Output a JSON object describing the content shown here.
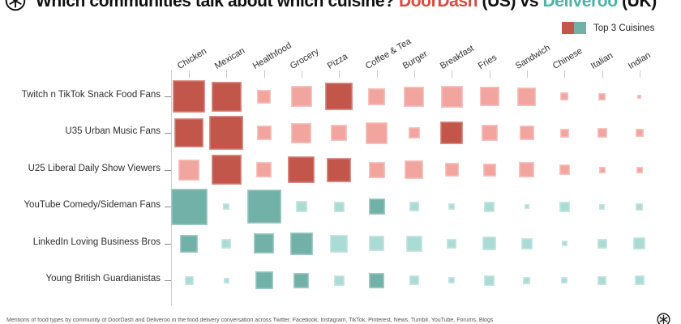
{
  "header": {
    "title_parts": [
      {
        "text": "Which communities talk about which cuisine? ",
        "color": "#111111"
      },
      {
        "text": "DoorDash",
        "color": "#d84b3e"
      },
      {
        "text": " (US) vs ",
        "color": "#111111"
      },
      {
        "text": "Deliveroo",
        "color": "#4db3a5"
      },
      {
        "text": " (UK)",
        "color": "#111111"
      }
    ],
    "legend": {
      "label": "Top 3 Cuisines",
      "swatch_us_color": "#c2564b",
      "swatch_uk_color": "#72b1a8"
    },
    "logo": "circled-asterisk-logo"
  },
  "footer": {
    "note": "Mentions of food types by community of DoorDash and Deliveroo in the food delivery conversation across Twitter, Facebook, Instagram, TikTok, Pinterest, News, Tumblr, YouTube, Forums, Blogs"
  },
  "chart_data": {
    "type": "heatmap",
    "subtype": "size-encoded matrix (square area = share of cuisine mentions; dark square = one of that community's top 3 cuisines)",
    "title": "Which communities talk about which cuisine? DoorDash (US) vs Deliveroo (UK)",
    "legend_label": "Top 3 Cuisines",
    "legend_position": "top-right",
    "grid": false,
    "columns": [
      "Chicken",
      "Mexican",
      "Healthfood",
      "Grocery",
      "Pizza",
      "Coffee & Tea",
      "Burger",
      "Breakfast",
      "Fries",
      "Sandwich",
      "Chinese",
      "Italian",
      "Indian"
    ],
    "palettes": {
      "red": {
        "base": "#f2a49e",
        "top3": "#c2564b",
        "brand": "DoorDash (US)"
      },
      "teal": {
        "base": "#abdbd5",
        "top3": "#72b1a8",
        "brand": "Deliveroo (UK)"
      }
    },
    "rows": [
      {
        "label": "Twitch n TikTok Snack Food Fans",
        "group": "DoorDash (US)",
        "palette": "red",
        "sizes": [
          40,
          37,
          17,
          26,
          34,
          21,
          25,
          27,
          24,
          23,
          10,
          9,
          5
        ],
        "top3_columns": [
          0,
          1,
          4
        ],
        "top3_names": [
          "Chicken",
          "Mexican",
          "Pizza"
        ]
      },
      {
        "label": "U35 Urban Music Fans",
        "group": "DoorDash (US)",
        "palette": "red",
        "sizes": [
          36,
          42,
          18,
          25,
          20,
          27,
          14,
          28,
          20,
          18,
          11,
          12,
          10
        ],
        "top3_columns": [
          0,
          1,
          7
        ],
        "top3_names": [
          "Chicken",
          "Mexican",
          "Breakfast"
        ]
      },
      {
        "label": "U25 Liberal Daily Show Viewers",
        "group": "DoorDash (US)",
        "palette": "red",
        "sizes": [
          26,
          37,
          19,
          33,
          30,
          20,
          23,
          17,
          16,
          19,
          13,
          8,
          8
        ],
        "top3_columns": [
          1,
          3,
          4
        ],
        "top3_names": [
          "Mexican",
          "Grocery",
          "Pizza"
        ]
      },
      {
        "label": "YouTube Comedy/Sideman Fans",
        "group": "Deliveroo (UK)",
        "palette": "teal",
        "sizes": [
          45,
          8,
          42,
          14,
          13,
          20,
          12,
          8,
          13,
          6,
          13,
          7,
          9
        ],
        "top3_columns": [
          0,
          2,
          5
        ],
        "top3_names": [
          "Chicken",
          "Healthfood",
          "Coffee & Tea"
        ]
      },
      {
        "label": "LinkedIn Loving Business Bros",
        "group": "Deliveroo (UK)",
        "palette": "teal",
        "sizes": [
          22,
          12,
          25,
          28,
          22,
          19,
          20,
          12,
          17,
          14,
          7,
          12,
          15
        ],
        "top3_columns": [
          0,
          2,
          3
        ],
        "top3_names": [
          "Chicken",
          "Healthfood",
          "Grocery"
        ]
      },
      {
        "label": "Young British Guardianistas",
        "group": "Deliveroo (UK)",
        "palette": "teal",
        "sizes": [
          11,
          7,
          22,
          19,
          13,
          19,
          12,
          8,
          13,
          9,
          8,
          11,
          12
        ],
        "top3_columns": [
          2,
          3,
          5
        ],
        "top3_names": [
          "Healthfood",
          "Grocery",
          "Coffee & Tea"
        ]
      }
    ]
  }
}
